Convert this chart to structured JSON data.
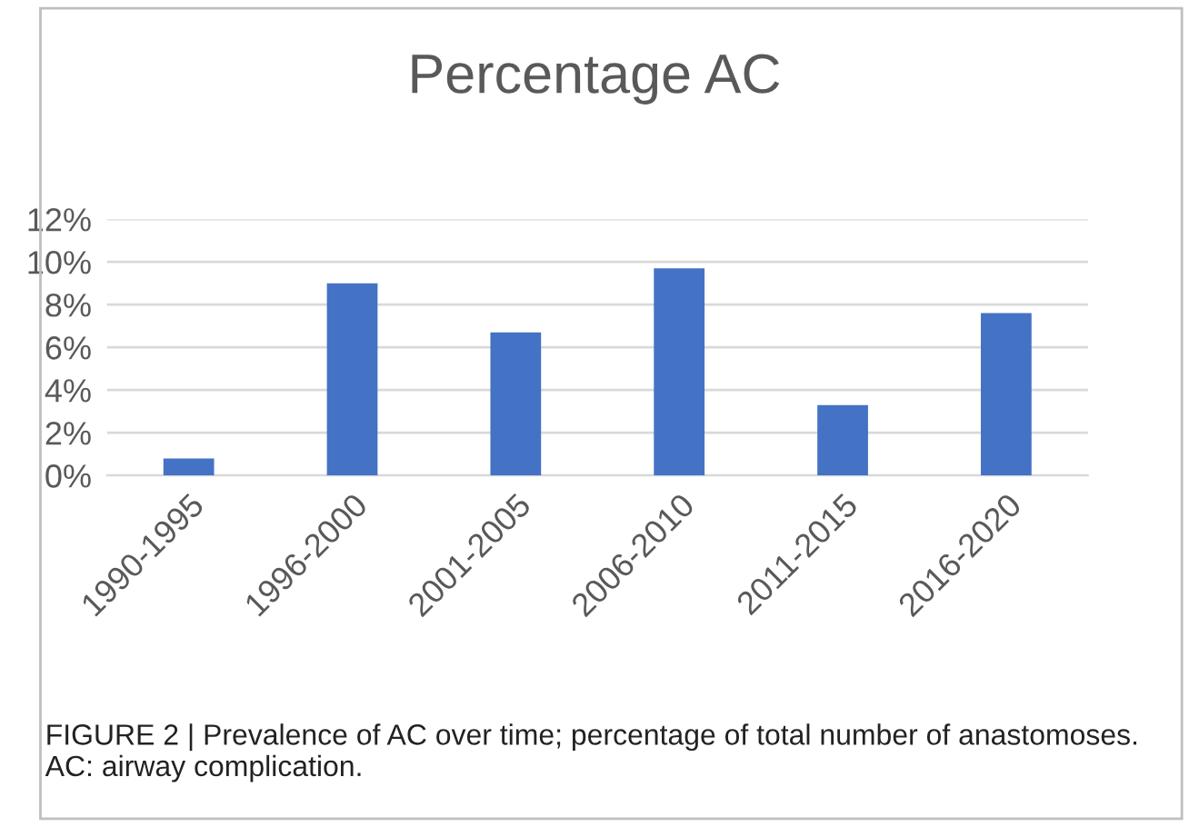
{
  "chart_data": {
    "type": "bar",
    "title": "Percentage AC",
    "categories": [
      "1990-1995",
      "1996-2000",
      "2001-2005",
      "2006-2010",
      "2011-2015",
      "2016-2020"
    ],
    "values": [
      0.8,
      9.0,
      6.7,
      9.7,
      3.3,
      7.6
    ],
    "color": "#4472c4",
    "ylim": [
      0,
      12
    ],
    "yticks": [
      {
        "value": 0,
        "label": "0%"
      },
      {
        "value": 2,
        "label": "2%"
      },
      {
        "value": 4,
        "label": "4%"
      },
      {
        "value": 6,
        "label": "6%"
      },
      {
        "value": 8,
        "label": "8%"
      },
      {
        "value": 10,
        "label": "10%"
      },
      {
        "value": 12,
        "label": "12%"
      }
    ],
    "grid": "y",
    "legend": false,
    "annotations": [
      "FIGURE 2 | Prevalence of AC over time; percentage of total number of anastomoses. AC: airway complication."
    ]
  }
}
